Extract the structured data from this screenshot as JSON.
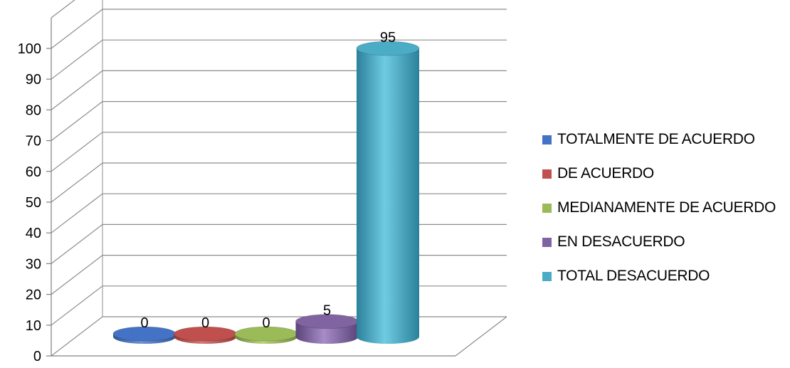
{
  "chart_data": {
    "type": "bar",
    "style": "3d-cylinder",
    "categories": [
      "TOTALMENTE DE ACUERDO",
      "DE ACUERDO",
      "MEDIANAMENTE DE ACUERDO",
      "EN DESACUERDO",
      "TOTAL DESACUERDO"
    ],
    "values": [
      0,
      0,
      0,
      5,
      95
    ],
    "data_labels": [
      "0",
      "0",
      "0",
      "5",
      "95"
    ],
    "colors": [
      "#4472C4",
      "#C0504D",
      "#9BBB59",
      "#8064A2",
      "#4BACC6"
    ],
    "title": "",
    "xlabel": "",
    "ylabel": "",
    "ylim": [
      0,
      100
    ],
    "y_ticks": [
      "0",
      "10",
      "20",
      "30",
      "40",
      "50",
      "60",
      "70",
      "80",
      "90",
      "100"
    ],
    "grid": true,
    "legend_position": "right"
  }
}
